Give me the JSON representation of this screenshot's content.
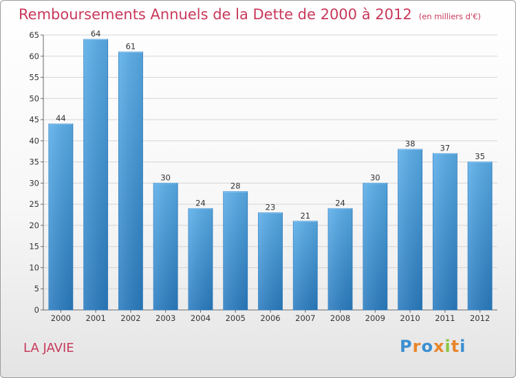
{
  "title": "Remboursements Annuels de la Dette de 2000 à 2012",
  "subtitle": "(en milliers d'€)",
  "commune": "LA JAVIE",
  "logo": {
    "text": "Proxiti",
    "colors": [
      "#3a8fd1",
      "#e8852a",
      "#3a8fd1",
      "#e8852a",
      "#8cc63f",
      "#e8852a",
      "#3a8fd1"
    ]
  },
  "chart_data": {
    "type": "bar",
    "title": "Remboursements Annuels de la Dette de 2000 à 2012",
    "subtitle": "(en milliers d'€)",
    "categories": [
      "2000",
      "2001",
      "2002",
      "2003",
      "2004",
      "2005",
      "2006",
      "2007",
      "2008",
      "2009",
      "2010",
      "2011",
      "2012"
    ],
    "values": [
      44,
      64,
      61,
      30,
      24,
      28,
      23,
      21,
      24,
      30,
      38,
      37,
      35
    ],
    "ylim": [
      0,
      65
    ],
    "yticks": [
      0,
      5,
      10,
      15,
      20,
      25,
      30,
      35,
      40,
      45,
      50,
      55,
      60,
      65
    ],
    "grid": true,
    "bar_color": "#3f95d8"
  }
}
